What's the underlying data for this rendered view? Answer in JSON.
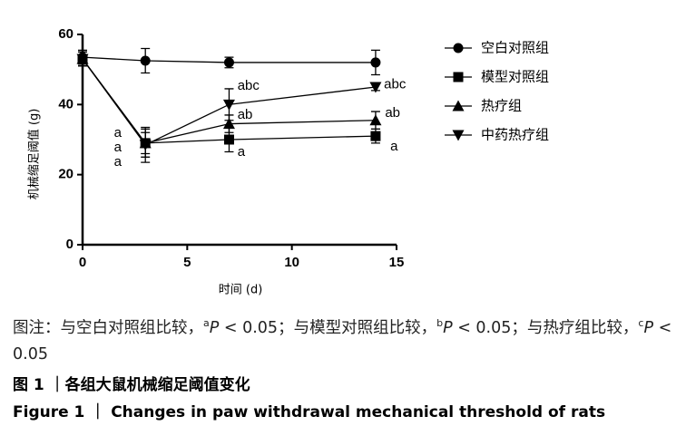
{
  "chart_data": {
    "type": "line",
    "x_label": "时间 (d)",
    "y_label": "机械缩足阈值 (g)",
    "x": [
      0,
      3,
      7,
      14
    ],
    "xlim": [
      0,
      15
    ],
    "xticks": [
      0,
      5,
      10,
      15
    ],
    "ylim": [
      0,
      60
    ],
    "yticks": [
      0,
      20,
      40,
      60
    ],
    "grid": false,
    "legend": "right",
    "series": [
      {
        "name": "空白对照组",
        "color": "#000000",
        "marker": "circle",
        "values": [
          53.5,
          52.5,
          52,
          52
        ],
        "errors": [
          2,
          3.5,
          1.5,
          3.5
        ]
      },
      {
        "name": "模型对照组",
        "color": "#000000",
        "marker": "square",
        "values": [
          53,
          29,
          30,
          31
        ],
        "errors": [
          2,
          3,
          3.5,
          2
        ]
      },
      {
        "name": "热疗组",
        "color": "#000000",
        "marker": "triangle",
        "values": [
          53,
          29,
          34.5,
          35.5
        ],
        "errors": [
          2,
          4,
          2.5,
          2.5
        ]
      },
      {
        "name": "中药热疗组",
        "color": "#000000",
        "marker": "triangle-down",
        "values": [
          53,
          28.5,
          40,
          45
        ],
        "errors": [
          2,
          5,
          4.5,
          1
        ]
      }
    ],
    "annotations": [
      {
        "text": "a",
        "x": 1.5,
        "y": 31.8
      },
      {
        "text": "a",
        "x": 1.5,
        "y": 27.6
      },
      {
        "text": "a",
        "x": 1.5,
        "y": 23.5
      },
      {
        "text": "abc",
        "x": 7.4,
        "y": 45.2
      },
      {
        "text": "ab",
        "x": 7.4,
        "y": 37
      },
      {
        "text": "a",
        "x": 7.4,
        "y": 26.4
      },
      {
        "text": "abc",
        "x": 14.4,
        "y": 45.7
      },
      {
        "text": "ab",
        "x": 14.45,
        "y": 37.5
      },
      {
        "text": "a",
        "x": 14.7,
        "y": 27.9
      }
    ]
  },
  "caption": {
    "note": [
      "图注：与空白对照组比较，",
      "a",
      "P",
      " < 0.05；与模型对照组比较，",
      "b",
      "P",
      " < 0.05；与热疗组比较，",
      "c",
      "P",
      " < 0.05"
    ],
    "title_cn": "图 1 ｜各组大鼠机械缩足阈值变化",
    "title_en": "Figure 1 ｜ Changes in paw withdrawal mechanical threshold of rats"
  }
}
